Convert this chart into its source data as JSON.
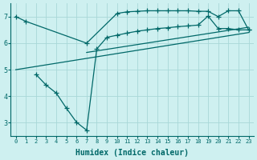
{
  "bg_color": "#cef0f0",
  "grid_color": "#a8d8d8",
  "line_color": "#006868",
  "line_width": 0.9,
  "marker": "+",
  "markersize": 4,
  "xlabel": "Humidex (Indice chaleur)",
  "xlabel_fontsize": 7,
  "ylim": [
    2.5,
    7.5
  ],
  "xlim": [
    -0.5,
    23.5
  ],
  "yticks": [
    3,
    4,
    5,
    6,
    7
  ],
  "xticks": [
    0,
    1,
    2,
    3,
    4,
    5,
    6,
    7,
    8,
    9,
    10,
    11,
    12,
    13,
    14,
    15,
    16,
    17,
    18,
    19,
    20,
    21,
    22,
    23
  ],
  "line1_x": [
    0,
    1,
    7,
    10,
    11,
    12,
    13,
    14,
    15,
    16,
    17,
    18,
    19,
    20,
    21,
    22,
    23
  ],
  "line1_y": [
    7.0,
    6.82,
    6.0,
    7.12,
    7.18,
    7.2,
    7.22,
    7.22,
    7.22,
    7.22,
    7.22,
    7.2,
    7.2,
    7.0,
    7.22,
    7.22,
    6.5
  ],
  "line2_x": [
    2,
    3,
    4,
    5,
    6,
    7,
    8,
    9,
    10,
    11,
    12,
    13,
    14,
    15,
    16,
    17,
    18,
    19,
    20,
    21,
    22,
    23
  ],
  "line2_y": [
    4.82,
    4.42,
    4.12,
    3.55,
    3.02,
    2.72,
    5.78,
    6.22,
    6.3,
    6.38,
    6.45,
    6.5,
    6.55,
    6.58,
    6.62,
    6.65,
    6.68,
    7.02,
    6.55,
    6.55,
    6.5,
    6.5
  ],
  "line3_x": [
    0,
    23
  ],
  "line3_y": [
    5.0,
    6.4
  ],
  "line4_x": [
    7,
    23
  ],
  "line4_y": [
    5.65,
    6.6
  ]
}
